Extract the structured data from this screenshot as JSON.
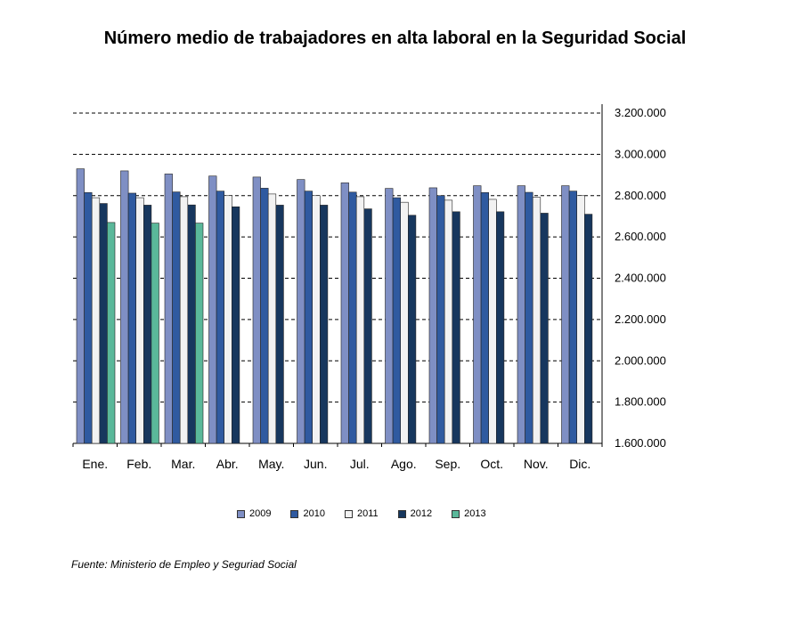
{
  "chart_data": {
    "type": "bar",
    "title": "Número medio de trabajadores en alta laboral en la Seguridad Social",
    "categories": [
      "Ene.",
      "Feb.",
      "Mar.",
      "Abr.",
      "May.",
      "Jun.",
      "Jul.",
      "Ago.",
      "Sep.",
      "Oct.",
      "Nov.",
      "Dic."
    ],
    "series": [
      {
        "name": "2009",
        "color": "#7f8fc4",
        "values": [
          2930000,
          2920000,
          2905000,
          2895000,
          2890000,
          2878000,
          2862000,
          2835000,
          2838000,
          2848000,
          2848000,
          2848000
        ]
      },
      {
        "name": "2010",
        "color": "#2f5aa0",
        "values": [
          2815000,
          2812000,
          2818000,
          2822000,
          2836000,
          2822000,
          2817000,
          2790000,
          2800000,
          2815000,
          2816000,
          2822000
        ]
      },
      {
        "name": "2011",
        "color": "#f2f2f2",
        "values": [
          2790000,
          2790000,
          2795000,
          2800000,
          2808000,
          2800000,
          2795000,
          2768000,
          2778000,
          2782000,
          2792000,
          2800000
        ]
      },
      {
        "name": "2012",
        "color": "#17375e",
        "values": [
          2762000,
          2754000,
          2755000,
          2746000,
          2754000,
          2754000,
          2736000,
          2705000,
          2722000,
          2722000,
          2715000,
          2710000
        ]
      },
      {
        "name": "2013",
        "color": "#5ab89a",
        "values": [
          2670000,
          2667000,
          2667000,
          null,
          null,
          null,
          null,
          null,
          null,
          null,
          null,
          null
        ]
      }
    ],
    "yticks": [
      "3.200.000",
      "3.000.000",
      "2.800.000",
      "2.600.000",
      "2.400.000",
      "2.200.000",
      "2.000.000",
      "1.800.000",
      "1.600.000"
    ],
    "ylim": [
      1600000,
      3200000
    ],
    "grid": true,
    "legend": "bottom",
    "y_axis_side": "right"
  },
  "source": "Fuente: Ministerio de Empleo y Seguriad Social"
}
